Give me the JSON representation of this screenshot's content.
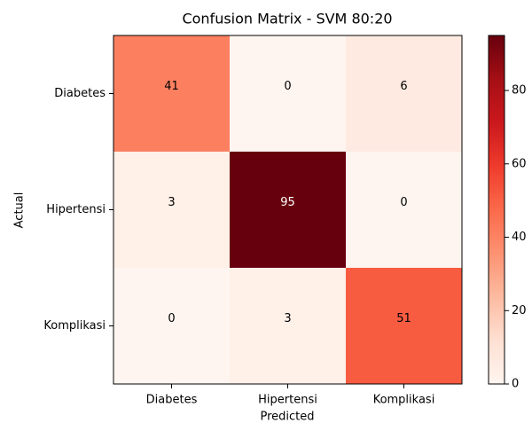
{
  "chart_data": {
    "type": "heatmap",
    "title": "Confusion Matrix - SVM 80:20",
    "xlabel": "Predicted",
    "ylabel": "Actual",
    "x_categories": [
      "Diabetes",
      "Hipertensi",
      "Komplikasi"
    ],
    "y_categories": [
      "Diabetes",
      "Hipertensi",
      "Komplikasi"
    ],
    "values": [
      [
        41,
        0,
        6
      ],
      [
        3,
        95,
        0
      ],
      [
        0,
        3,
        51
      ]
    ],
    "colormap": [
      "#fff5f0",
      "#fee0d2",
      "#fcbba1",
      "#fc9272",
      "#fb6a4a",
      "#ef3b2c",
      "#cb181d",
      "#a50f15",
      "#67000d"
    ],
    "clim": [
      0,
      95
    ],
    "cticks": [
      0,
      20,
      40,
      60,
      80
    ]
  }
}
